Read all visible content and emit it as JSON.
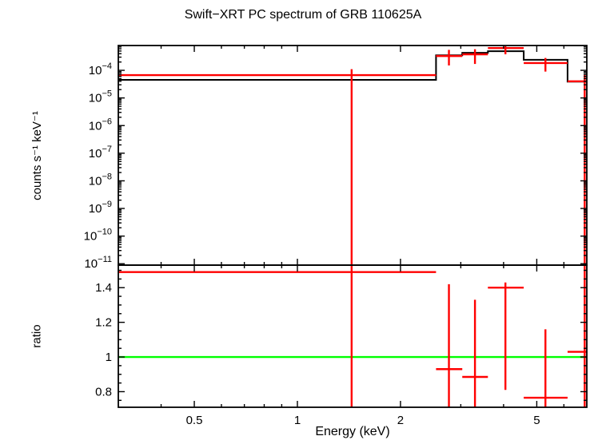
{
  "chart_data": {
    "type": "scatter",
    "title": "Swift−XRT PC spectrum of GRB 110625A",
    "xlabel": "Energy (keV)",
    "x_scale": "log",
    "xlim": [
      0.3,
      7
    ],
    "x_major_ticks": [
      0.5,
      1,
      2,
      5
    ],
    "x_major_tick_labels": [
      "0.5",
      "1",
      "2",
      "5"
    ],
    "x_minor_ticks": [
      0.4,
      0.6,
      0.7,
      0.8,
      0.9,
      3,
      4,
      6
    ],
    "grid": false,
    "legend": false,
    "background": "#ffffff",
    "frame_color": "#000000",
    "panels": [
      {
        "name": "spectrum",
        "ylabel": "counts s⁻¹ keV⁻¹",
        "y_scale": "log",
        "ylim": [
          8.9e-12,
          0.00079
        ],
        "y_tick_exponents": [
          -4,
          -5,
          -6,
          -7,
          -8,
          -9,
          -10,
          -11
        ],
        "model_color": "#000000",
        "data_color": "#ff0000",
        "model_steps": {
          "edges": [
            0.3,
            2.54,
            3.03,
            3.6,
            4.58,
            6.15,
            7.0
          ],
          "values": [
            4.5e-05,
            0.00035,
            0.00043,
            0.00049,
            0.00024,
            3.9e-05
          ]
        },
        "points": [
          {
            "x": 1.44,
            "xlo": 0.3,
            "xhi": 2.54,
            "y": 6.7e-05,
            "ylo": 1e-12,
            "yhi": 0.00011
          },
          {
            "x": 2.77,
            "xlo": 2.54,
            "xhi": 3.03,
            "y": 0.00033,
            "ylo": 0.00015,
            "yhi": 0.00055
          },
          {
            "x": 3.3,
            "xlo": 3.03,
            "xhi": 3.6,
            "y": 0.00038,
            "ylo": 0.00017,
            "yhi": 0.00058
          },
          {
            "x": 4.05,
            "xlo": 3.6,
            "xhi": 4.58,
            "y": 0.00064,
            "ylo": 0.00038,
            "yhi": 0.00074
          },
          {
            "x": 5.3,
            "xlo": 4.58,
            "xhi": 6.15,
            "y": 0.000184,
            "ylo": 9e-05,
            "yhi": 0.00028
          },
          {
            "x": 6.9,
            "xlo": 6.15,
            "xhi": 7.0,
            "y": 4e-05,
            "ylo": 1e-12,
            "yhi": 7e-05
          }
        ]
      },
      {
        "name": "ratio",
        "ylabel": "ratio",
        "y_scale": "linear",
        "ylim": [
          0.71,
          1.53
        ],
        "y_major_ticks": [
          0.8,
          1,
          1.2,
          1.4
        ],
        "y_major_tick_labels": [
          "0.8",
          "1",
          "1.2",
          "1.4"
        ],
        "reference_line": {
          "y": 1,
          "color": "#00ff00"
        },
        "data_color": "#ff0000",
        "points": [
          {
            "x": 1.44,
            "xlo": 0.3,
            "xhi": 2.54,
            "y": 1.49,
            "ylo": 0.4,
            "yhi": 1.7
          },
          {
            "x": 2.77,
            "xlo": 2.54,
            "xhi": 3.03,
            "y": 0.93,
            "ylo": 0.4,
            "yhi": 1.42
          },
          {
            "x": 3.3,
            "xlo": 3.03,
            "xhi": 3.6,
            "y": 0.885,
            "ylo": 0.4,
            "yhi": 1.33
          },
          {
            "x": 4.05,
            "xlo": 3.6,
            "xhi": 4.58,
            "y": 1.4,
            "ylo": 0.81,
            "yhi": 1.43
          },
          {
            "x": 5.3,
            "xlo": 4.58,
            "xhi": 6.15,
            "y": 0.765,
            "ylo": 0.4,
            "yhi": 1.16
          },
          {
            "x": 6.9,
            "xlo": 6.15,
            "xhi": 7.0,
            "y": 1.03,
            "ylo": 0.4,
            "yhi": 1.8
          }
        ]
      }
    ]
  }
}
